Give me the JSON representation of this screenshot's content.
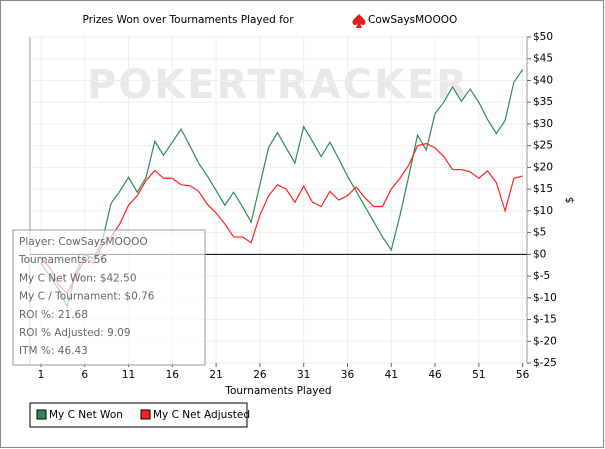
{
  "chart_data": {
    "type": "line",
    "title": "Prizes Won over Tournaments Played for",
    "player": "CowSaysMOOOO",
    "watermark": "POKERTRACKER",
    "xlabel": "Tournaments Played",
    "ylabel": "$",
    "x": [
      1,
      2,
      3,
      4,
      5,
      6,
      7,
      8,
      9,
      10,
      11,
      12,
      13,
      14,
      15,
      16,
      17,
      18,
      19,
      20,
      21,
      22,
      23,
      24,
      25,
      26,
      27,
      28,
      29,
      30,
      31,
      32,
      33,
      34,
      35,
      36,
      37,
      38,
      39,
      40,
      41,
      42,
      43,
      44,
      45,
      46,
      47,
      48,
      49,
      50,
      51,
      52,
      53,
      54,
      55,
      56
    ],
    "series": [
      {
        "name": "My C Net Won",
        "color": "#2e8b57",
        "values": [
          -2,
          -5,
          -8,
          -12,
          -4,
          0,
          -1,
          3,
          11.7,
          14.5,
          17.7,
          14.3,
          17.7,
          26,
          22.8,
          25.8,
          28.8,
          25,
          21,
          18,
          14.7,
          11.3,
          14.3,
          11,
          7.4,
          16,
          24.6,
          28,
          24.5,
          21,
          29.4,
          26,
          22.5,
          25.8,
          22,
          18,
          14.5,
          11,
          7.5,
          4,
          1,
          9,
          18,
          27.4,
          24,
          32.4,
          35,
          38.5,
          35.2,
          38,
          35,
          31,
          27.8,
          30.8,
          39.6,
          42.5
        ]
      },
      {
        "name": "My C Net Adjusted",
        "color": "#ff2020",
        "values": [
          -1,
          -3,
          -7,
          -9,
          -5,
          -1,
          -2,
          2,
          4,
          7,
          11.3,
          13.5,
          17,
          19.3,
          17.5,
          17.5,
          16,
          15.8,
          14.5,
          11.5,
          9.5,
          7,
          4,
          4,
          2.7,
          9,
          13.5,
          16,
          15,
          12,
          15.7,
          12,
          11,
          14.5,
          12.5,
          13.5,
          15.5,
          13,
          11,
          11,
          15,
          17.5,
          20.5,
          25,
          25.5,
          24.5,
          22.5,
          19.5,
          19.5,
          19,
          17.5,
          19.2,
          16.5,
          10,
          17.5,
          18
        ]
      }
    ],
    "xlim": [
      -0.25,
      56.5
    ],
    "ylim": [
      -25,
      50
    ],
    "xticks": [
      1,
      6,
      11,
      16,
      21,
      26,
      31,
      36,
      41,
      46,
      51,
      56
    ],
    "yticks": [
      {
        "value": -25,
        "label": "$-25"
      },
      {
        "value": -20,
        "label": "$-20"
      },
      {
        "value": -15,
        "label": "$-15"
      },
      {
        "value": -10,
        "label": "$-10"
      },
      {
        "value": -5,
        "label": "$-5"
      },
      {
        "value": 0,
        "label": "$0"
      },
      {
        "value": 5,
        "label": "$5"
      },
      {
        "value": 10,
        "label": "$10"
      },
      {
        "value": 15,
        "label": "$15"
      },
      {
        "value": 20,
        "label": "$20"
      },
      {
        "value": 25,
        "label": "$25"
      },
      {
        "value": 30,
        "label": "$30"
      },
      {
        "value": 35,
        "label": "$35"
      },
      {
        "value": 40,
        "label": "$40"
      },
      {
        "value": 45,
        "label": "$45"
      },
      {
        "value": 50,
        "label": "$50"
      }
    ],
    "grid": true,
    "info_lines": [
      "Player: CowSaysMOOOO",
      "Tournaments: 56",
      "My C Net Won: $42.50",
      "My C / Tournament: $0.76",
      "ROI %: 21.68",
      "ROI % Adjusted: 9.09",
      "ITM %: 46.43"
    ]
  }
}
